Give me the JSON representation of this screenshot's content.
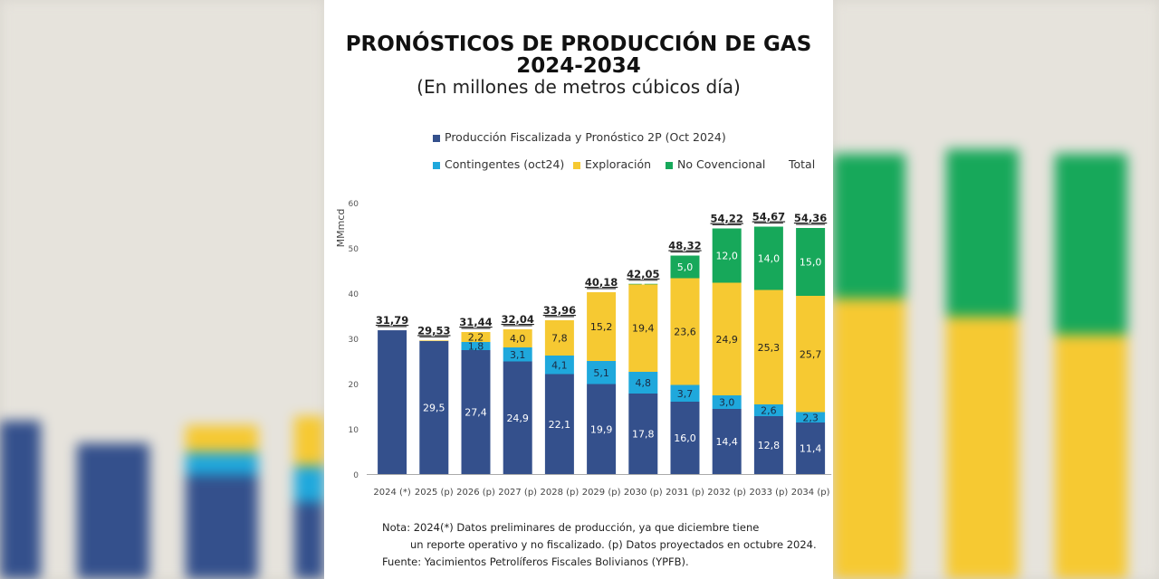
{
  "title_line1": "PRONÓSTICOS DE PRODUCCIÓN DE GAS",
  "title_line2": "2024-2034",
  "subtitle": "(En millones de metros cúbicos día)",
  "legend": {
    "produccion": "Producción Fiscalizada y Pronóstico 2P (Oct 2024)",
    "contingentes": "Contingentes (oct24)",
    "exploracion": "Exploración",
    "no_convencional": "No Covencional",
    "total": "Total"
  },
  "colors": {
    "produccion": "#34508c",
    "contingentes": "#1fa8dc",
    "exploracion": "#f6c932",
    "no_convencional": "#17a85a"
  },
  "notes": {
    "line1": "Nota: 2024(*) Datos preliminares de producción, ya que diciembre tiene",
    "line2": "un reporte operativo y no fiscalizado. (p) Datos proyectados en octubre 2024.",
    "line3": "Fuente: Yacimientos Petrolíferos Fiscales Bolivianos (YPFB)."
  },
  "chart_data": {
    "type": "bar",
    "stacked": true,
    "ylabel": "MMmcd",
    "ylim": [
      0,
      60
    ],
    "yticks": [
      "0",
      "10",
      "20",
      "30",
      "40",
      "50",
      "60"
    ],
    "categories": [
      "2024 (*)",
      "2025 (p)",
      "2026 (p)",
      "2027 (p)",
      "2028 (p)",
      "2029 (p)",
      "2030 (p)",
      "2031 (p)",
      "2032 (p)",
      "2033 (p)",
      "2034 (p)"
    ],
    "series": [
      {
        "key": "produccion",
        "name": "Producción Fiscalizada y Pronóstico 2P (Oct 2024)",
        "values": [
          31.79,
          29.5,
          27.4,
          24.9,
          22.1,
          19.9,
          17.8,
          16.0,
          14.4,
          12.8,
          11.4
        ],
        "labels": [
          "",
          "29,5",
          "27,4",
          "24,9",
          "22,1",
          "19,9",
          "17,8",
          "16,0",
          "14,4",
          "12,8",
          "11,4"
        ]
      },
      {
        "key": "contingentes",
        "name": "Contingentes (oct24)",
        "values": [
          0,
          0,
          1.8,
          3.1,
          4.1,
          5.1,
          4.8,
          3.7,
          3.0,
          2.6,
          2.3
        ],
        "labels": [
          "",
          "",
          "1,8",
          "3,1",
          "4,1",
          "5,1",
          "4,8",
          "3,7",
          "3,0",
          "2,6",
          "2,3"
        ]
      },
      {
        "key": "exploracion",
        "name": "Exploración",
        "values": [
          0,
          0.03,
          2.2,
          4.0,
          7.8,
          15.2,
          19.4,
          23.6,
          24.9,
          25.3,
          25.7
        ],
        "labels": [
          "",
          "",
          "2,2",
          "4,0",
          "7,8",
          "15,2",
          "19,4",
          "23,6",
          "24,9",
          "25,3",
          "25,7"
        ]
      },
      {
        "key": "no_convencional",
        "name": "No Covencional",
        "values": [
          0,
          0,
          0,
          0,
          0,
          0,
          0.05,
          5.0,
          12.0,
          14.0,
          15.0
        ],
        "labels": [
          "",
          "",
          "",
          "",
          "",
          "",
          "-",
          "5,0",
          "12,0",
          "14,0",
          "15,0"
        ]
      }
    ],
    "totals": [
      "31,79",
      "29,53",
      "31,44",
      "32,04",
      "33,96",
      "40,18",
      "42,05",
      "48,32",
      "54,22",
      "54,67",
      "54,36"
    ]
  }
}
